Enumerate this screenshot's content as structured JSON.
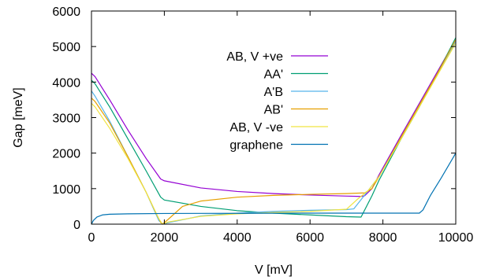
{
  "chart_data": {
    "type": "line",
    "title": "",
    "xlabel": "V [mV]",
    "ylabel": "Gap [meV]",
    "xlim": [
      0,
      10000
    ],
    "ylim": [
      0,
      6000
    ],
    "xticks": [
      "0",
      "2000",
      "4000",
      "6000",
      "8000",
      "10000"
    ],
    "yticks": [
      "0",
      "1000",
      "2000",
      "3000",
      "4000",
      "5000",
      "6000"
    ],
    "grid": false,
    "legend_position": "top-right",
    "series": [
      {
        "name": "AB, V +ve",
        "color": "#9400d3",
        "points": [
          [
            0,
            4250
          ],
          [
            100,
            4150
          ],
          [
            500,
            3500
          ],
          [
            1000,
            2650
          ],
          [
            1500,
            1850
          ],
          [
            1900,
            1270
          ],
          [
            2000,
            1220
          ],
          [
            3000,
            1020
          ],
          [
            4000,
            920
          ],
          [
            5000,
            860
          ],
          [
            6000,
            820
          ],
          [
            7000,
            790
          ],
          [
            7400,
            780
          ],
          [
            7500,
            800
          ],
          [
            7700,
            1000
          ],
          [
            7900,
            1400
          ],
          [
            8500,
            2500
          ],
          [
            9000,
            3400
          ],
          [
            9500,
            4300
          ],
          [
            10000,
            5200
          ]
        ]
      },
      {
        "name": "AA'",
        "color": "#009e73",
        "points": [
          [
            0,
            4050
          ],
          [
            100,
            3950
          ],
          [
            500,
            3300
          ],
          [
            1000,
            2400
          ],
          [
            1500,
            1500
          ],
          [
            1900,
            760
          ],
          [
            2000,
            680
          ],
          [
            3000,
            500
          ],
          [
            4000,
            380
          ],
          [
            5000,
            310
          ],
          [
            6000,
            260
          ],
          [
            7000,
            210
          ],
          [
            7400,
            200
          ],
          [
            7700,
            800
          ],
          [
            7900,
            1250
          ],
          [
            8500,
            2400
          ],
          [
            9000,
            3300
          ],
          [
            9500,
            4250
          ],
          [
            10000,
            5250
          ]
        ]
      },
      {
        "name": "A'B",
        "color": "#56b4e9",
        "points": [
          [
            0,
            3750
          ],
          [
            100,
            3600
          ],
          [
            500,
            2900
          ],
          [
            1000,
            1900
          ],
          [
            1500,
            900
          ],
          [
            1850,
            100
          ],
          [
            1950,
            0
          ],
          [
            2100,
            40
          ],
          [
            3000,
            230
          ],
          [
            4000,
            310
          ],
          [
            5000,
            360
          ],
          [
            6000,
            390
          ],
          [
            7000,
            410
          ],
          [
            7200,
            430
          ],
          [
            7500,
            820
          ],
          [
            7900,
            1350
          ],
          [
            8500,
            2450
          ],
          [
            9000,
            3350
          ],
          [
            9500,
            4250
          ],
          [
            10000,
            5150
          ]
        ]
      },
      {
        "name": "AB'",
        "color": "#e69f00",
        "points": [
          [
            0,
            3550
          ],
          [
            100,
            3450
          ],
          [
            500,
            2850
          ],
          [
            1000,
            1900
          ],
          [
            1500,
            900
          ],
          [
            1800,
            250
          ],
          [
            1900,
            50
          ],
          [
            1950,
            0
          ],
          [
            2100,
            130
          ],
          [
            2500,
            500
          ],
          [
            3000,
            650
          ],
          [
            4000,
            760
          ],
          [
            5000,
            810
          ],
          [
            6000,
            840
          ],
          [
            7000,
            860
          ],
          [
            7500,
            880
          ],
          [
            7700,
            1000
          ],
          [
            7900,
            1350
          ],
          [
            8500,
            2450
          ],
          [
            9000,
            3350
          ],
          [
            9500,
            4250
          ],
          [
            10000,
            5200
          ]
        ]
      },
      {
        "name": "AB, V -ve",
        "color": "#f0e442",
        "points": [
          [
            0,
            3400
          ],
          [
            100,
            3300
          ],
          [
            500,
            2700
          ],
          [
            1000,
            1850
          ],
          [
            1500,
            900
          ],
          [
            1850,
            150
          ],
          [
            1950,
            0
          ],
          [
            2100,
            60
          ],
          [
            3000,
            220
          ],
          [
            4000,
            290
          ],
          [
            5000,
            330
          ],
          [
            6000,
            360
          ],
          [
            7000,
            420
          ],
          [
            7300,
            700
          ],
          [
            7600,
            950
          ],
          [
            7900,
            1350
          ],
          [
            8500,
            2400
          ],
          [
            9000,
            3300
          ],
          [
            9500,
            4200
          ],
          [
            10000,
            5100
          ]
        ]
      },
      {
        "name": "graphene",
        "color": "#0072b2",
        "points": [
          [
            0,
            0
          ],
          [
            50,
            100
          ],
          [
            150,
            200
          ],
          [
            300,
            260
          ],
          [
            500,
            280
          ],
          [
            1000,
            290
          ],
          [
            2000,
            300
          ],
          [
            4000,
            305
          ],
          [
            6000,
            310
          ],
          [
            8000,
            310
          ],
          [
            9000,
            310
          ],
          [
            9100,
            400
          ],
          [
            9300,
            800
          ],
          [
            9600,
            1300
          ],
          [
            10000,
            2000
          ]
        ]
      }
    ]
  }
}
